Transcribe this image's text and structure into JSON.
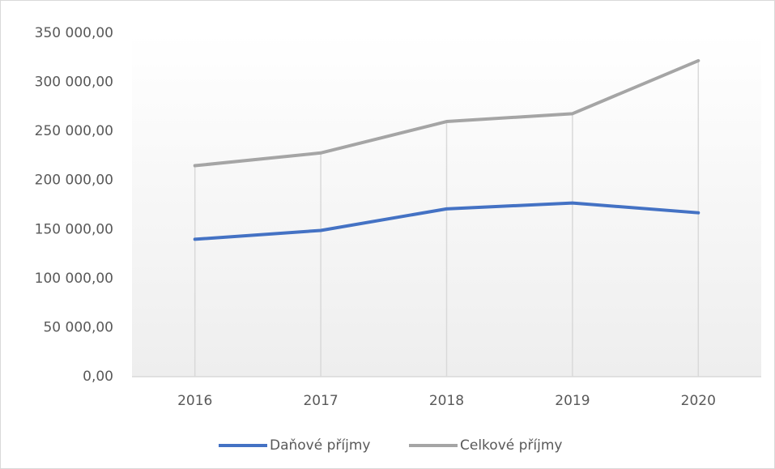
{
  "chart_data": {
    "type": "line",
    "categories": [
      "2016",
      "2017",
      "2018",
      "2019",
      "2020"
    ],
    "series": [
      {
        "name": "Daňové příjmy",
        "color": "#4472c4",
        "values": [
          140000,
          149000,
          171000,
          177000,
          167000
        ]
      },
      {
        "name": "Celkové příjmy",
        "color": "#a5a5a5",
        "values": [
          215000,
          228000,
          260000,
          268000,
          322000
        ]
      }
    ],
    "ylim": [
      0,
      350000
    ],
    "yticks": [
      {
        "value": 0,
        "label": "0,00"
      },
      {
        "value": 50000,
        "label": "50 000,00"
      },
      {
        "value": 100000,
        "label": "100 000,00"
      },
      {
        "value": 150000,
        "label": "150 000,00"
      },
      {
        "value": 200000,
        "label": "200 000,00"
      },
      {
        "value": 250000,
        "label": "250 000,00"
      },
      {
        "value": 300000,
        "label": "300 000,00"
      },
      {
        "value": 350000,
        "label": "350 000,00"
      }
    ],
    "legend": "bottom"
  }
}
